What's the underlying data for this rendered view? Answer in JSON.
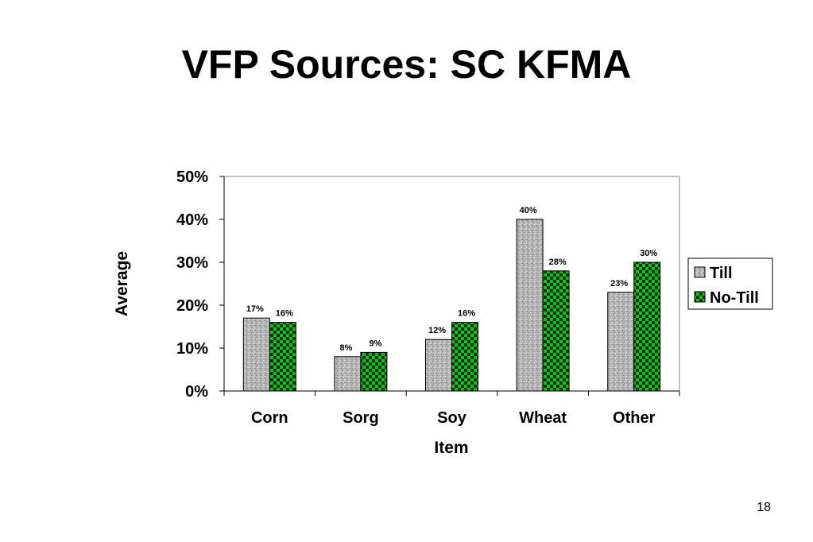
{
  "slide": {
    "title": "VFP Sources: SC KFMA",
    "page_number": "18"
  },
  "colors": {
    "till_fill": "#b4b4b4",
    "notill_fill": "#22b822",
    "notill_check": "#000000"
  },
  "chart_data": {
    "type": "bar",
    "title": "",
    "xlabel": "Item",
    "ylabel": "Average",
    "categories": [
      "Corn",
      "Sorg",
      "Soy",
      "Wheat",
      "Other"
    ],
    "series": [
      {
        "name": "Till",
        "values": [
          17,
          8,
          12,
          40,
          23
        ],
        "labels": [
          "17%",
          "8%",
          "12%",
          "40%",
          "23%"
        ]
      },
      {
        "name": "No-Till",
        "values": [
          16,
          9,
          16,
          28,
          30
        ],
        "labels": [
          "16%",
          "9%",
          "16%",
          "28%",
          "30%"
        ]
      }
    ],
    "ylim": [
      0,
      50
    ],
    "yticks": [
      0,
      10,
      20,
      30,
      40,
      50
    ],
    "ytick_labels": [
      "0%",
      "10%",
      "20%",
      "30%",
      "40%",
      "50%"
    ],
    "grid": false,
    "legend": "right"
  }
}
